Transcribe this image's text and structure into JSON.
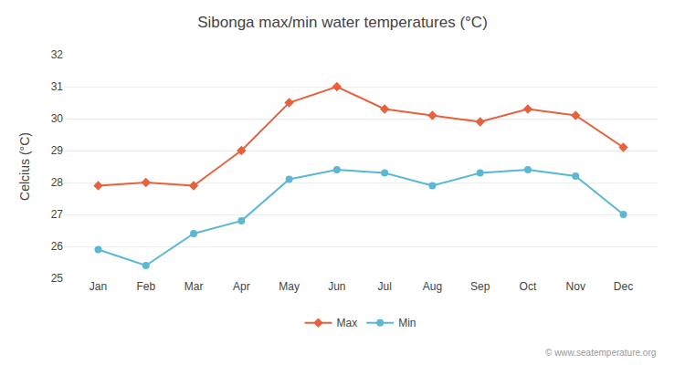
{
  "chart_data": {
    "type": "line",
    "title": "Sibonga max/min water temperatures (°C)",
    "y_label": "Celcius (°C)",
    "categories": [
      "Jan",
      "Feb",
      "Mar",
      "Apr",
      "May",
      "Jun",
      "Jul",
      "Aug",
      "Sep",
      "Oct",
      "Nov",
      "Dec"
    ],
    "series": [
      {
        "name": "Max",
        "color": "#e8603c",
        "marker": "diamond",
        "values": [
          27.9,
          28.0,
          27.9,
          29.0,
          30.5,
          31.0,
          30.3,
          30.1,
          29.9,
          30.3,
          30.1,
          29.1
        ]
      },
      {
        "name": "Min",
        "color": "#5ab8d4",
        "marker": "circle",
        "values": [
          25.9,
          25.4,
          26.4,
          26.8,
          28.1,
          28.4,
          28.3,
          27.9,
          28.3,
          28.4,
          28.2,
          27.0
        ]
      }
    ],
    "ylim": [
      25,
      32
    ],
    "yticks": [
      25,
      26,
      27,
      28,
      29,
      30,
      31,
      32
    ],
    "grid": true,
    "legend": "bottom",
    "annotations": [
      "© www.seatemperature.org"
    ]
  }
}
